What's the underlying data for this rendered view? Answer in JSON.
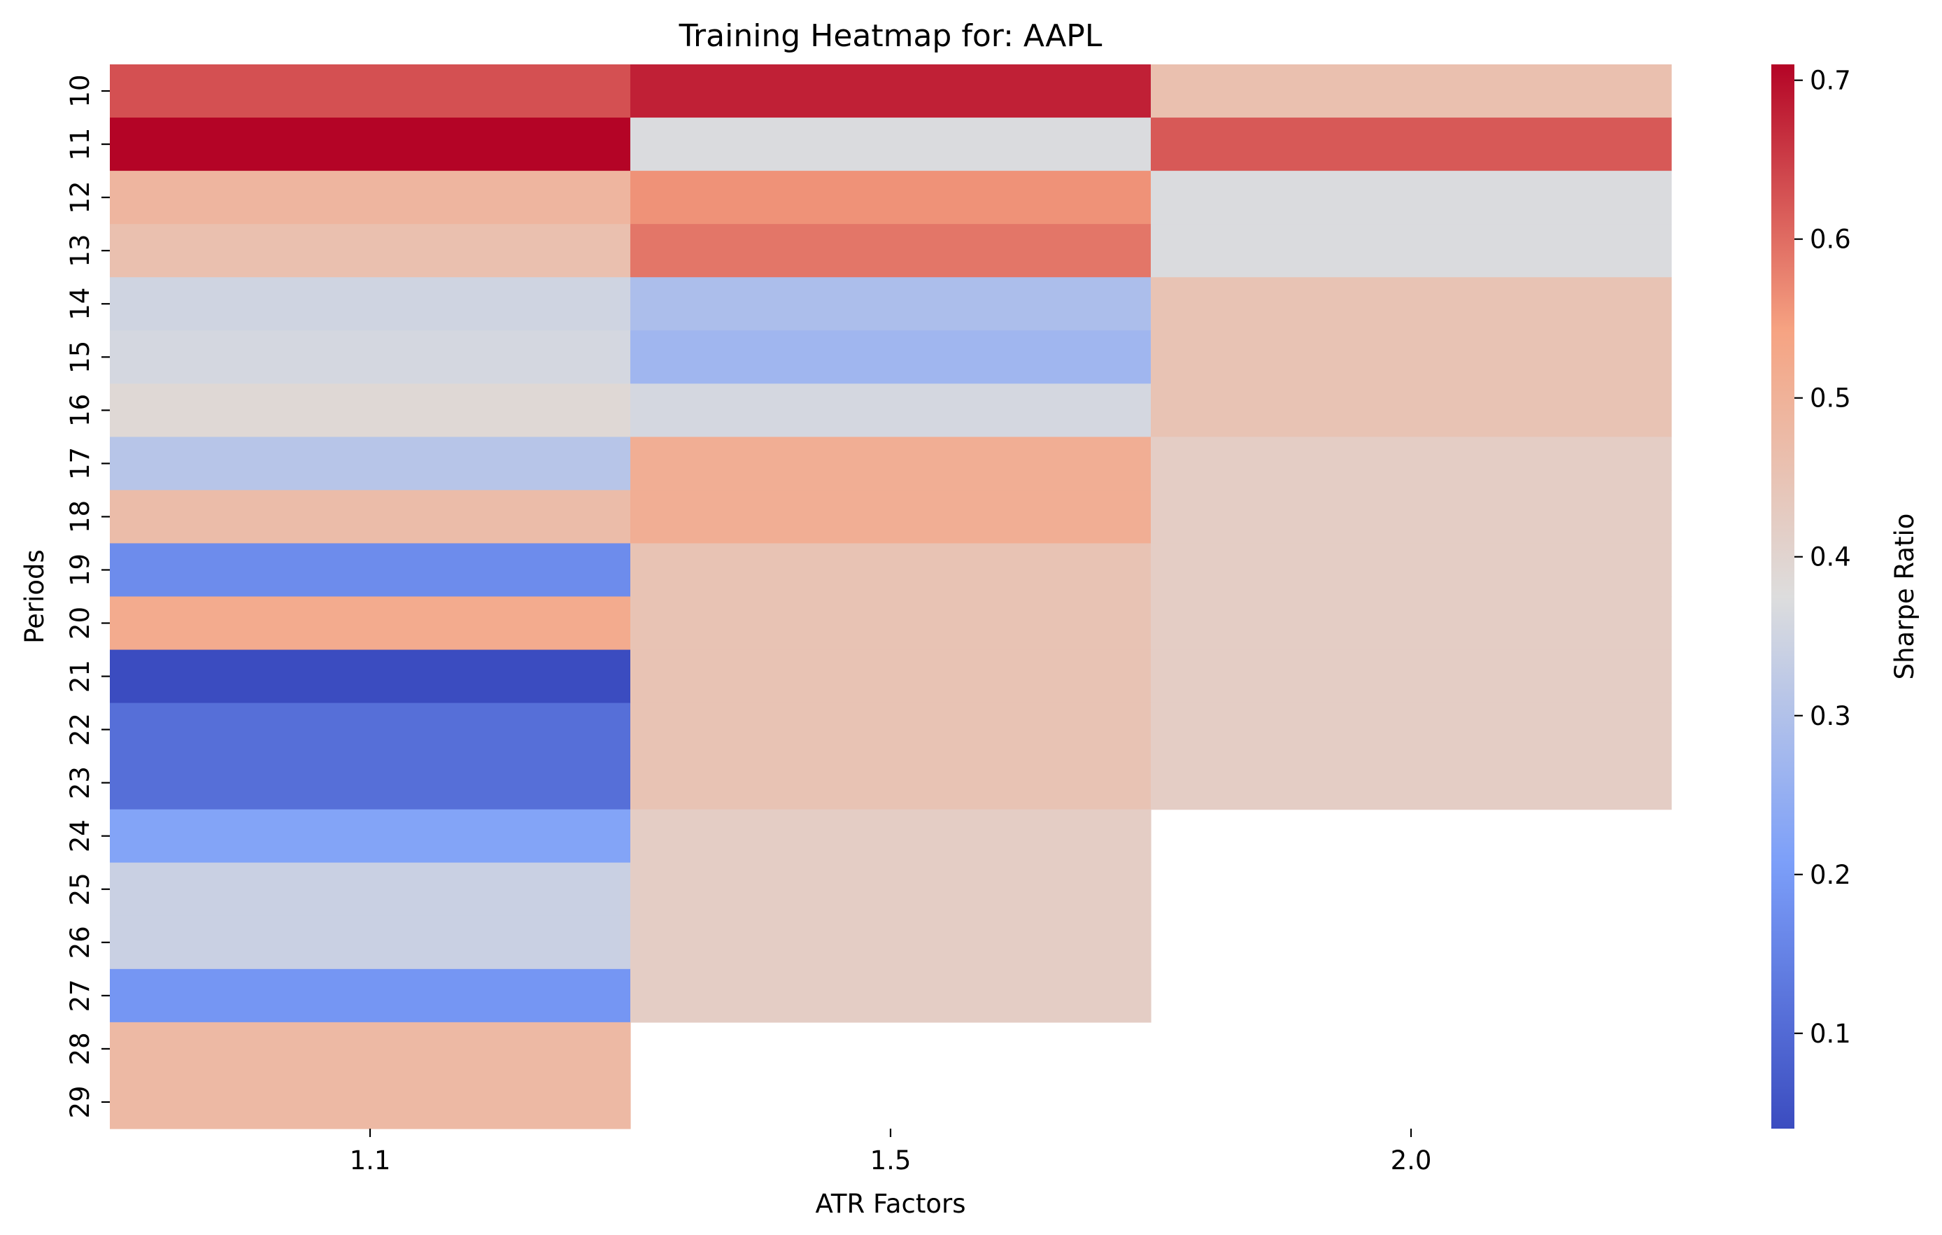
{
  "chart_data": {
    "type": "heatmap",
    "title": "Training Heatmap for: AAPL",
    "xlabel": "ATR Factors",
    "ylabel": "Periods",
    "x_categories": [
      "1.1",
      "1.5",
      "2.0"
    ],
    "y_categories": [
      "10",
      "11",
      "12",
      "13",
      "14",
      "15",
      "16",
      "17",
      "18",
      "19",
      "20",
      "21",
      "22",
      "23",
      "24",
      "25",
      "26",
      "27",
      "28",
      "29"
    ],
    "values": [
      [
        0.63,
        0.68,
        0.46
      ],
      [
        0.71,
        0.37,
        0.62
      ],
      [
        0.49,
        0.56,
        0.37
      ],
      [
        0.46,
        0.59,
        0.37
      ],
      [
        0.35,
        0.29,
        0.45
      ],
      [
        0.36,
        0.27,
        0.45
      ],
      [
        0.39,
        0.36,
        0.45
      ],
      [
        0.31,
        0.51,
        0.42
      ],
      [
        0.47,
        0.51,
        0.42
      ],
      [
        0.17,
        0.45,
        0.42
      ],
      [
        0.52,
        0.45,
        0.42
      ],
      [
        0.04,
        0.45,
        0.42
      ],
      [
        0.11,
        0.45,
        0.42
      ],
      [
        0.11,
        0.45,
        0.42
      ],
      [
        0.22,
        0.42,
        null
      ],
      [
        0.34,
        0.42,
        null
      ],
      [
        0.34,
        0.42,
        null
      ],
      [
        0.19,
        0.42,
        null
      ],
      [
        0.48,
        null,
        null
      ],
      [
        0.48,
        null,
        null
      ]
    ],
    "colorbar": {
      "label": "Sharpe Ratio",
      "min": 0.04,
      "max": 0.71,
      "ticks": [
        "0.1",
        "0.2",
        "0.3",
        "0.4",
        "0.5",
        "0.6",
        "0.7"
      ],
      "colormap": "coolwarm"
    },
    "grid": false
  }
}
